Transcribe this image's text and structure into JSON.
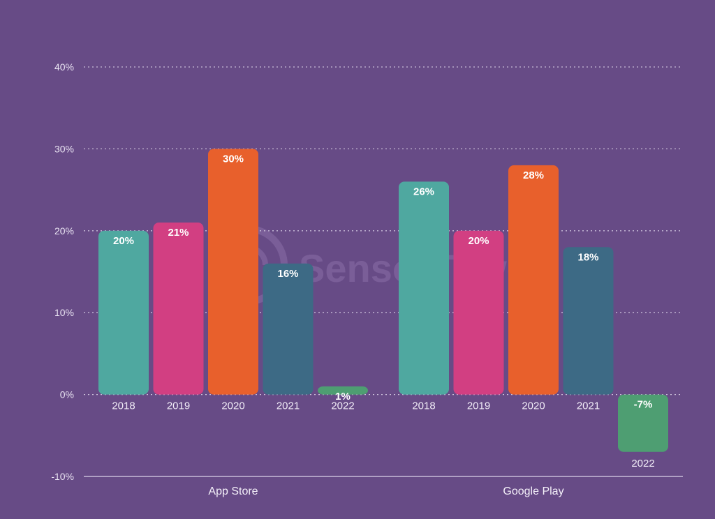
{
  "chart_data": {
    "type": "bar",
    "title": "",
    "xlabel": "",
    "ylabel": "",
    "ylim": [
      -10,
      40
    ],
    "yticks": [
      40,
      30,
      20,
      10,
      0,
      -10
    ],
    "ytick_labels": [
      "40%",
      "30%",
      "20%",
      "10%",
      "0%",
      "-10%"
    ],
    "grid": true,
    "groups": [
      {
        "name": "App Store",
        "bars": [
          {
            "year": "2018",
            "value": 20,
            "label": "20%",
            "color": "#4FA8A0"
          },
          {
            "year": "2019",
            "value": 21,
            "label": "21%",
            "color": "#D23F82"
          },
          {
            "year": "2020",
            "value": 30,
            "label": "30%",
            "color": "#E8602C"
          },
          {
            "year": "2021",
            "value": 16,
            "label": "16%",
            "color": "#3D6A85"
          },
          {
            "year": "2022",
            "value": 1,
            "label": "1%",
            "color": "#4E9E72"
          }
        ]
      },
      {
        "name": "Google Play",
        "bars": [
          {
            "year": "2018",
            "value": 26,
            "label": "26%",
            "color": "#4FA8A0"
          },
          {
            "year": "2019",
            "value": 20,
            "label": "20%",
            "color": "#D23F82"
          },
          {
            "year": "2020",
            "value": 28,
            "label": "28%",
            "color": "#E8602C"
          },
          {
            "year": "2021",
            "value": 18,
            "label": "18%",
            "color": "#3D6A85"
          },
          {
            "year": "2022",
            "value": -7,
            "label": "-7%",
            "color": "#4E9E72"
          }
        ]
      }
    ]
  },
  "watermark": {
    "text": "SensorTower"
  },
  "colors": {
    "background": "#674B86",
    "grid": "#C9BDD8",
    "axis_text": "#E9E3F2"
  }
}
